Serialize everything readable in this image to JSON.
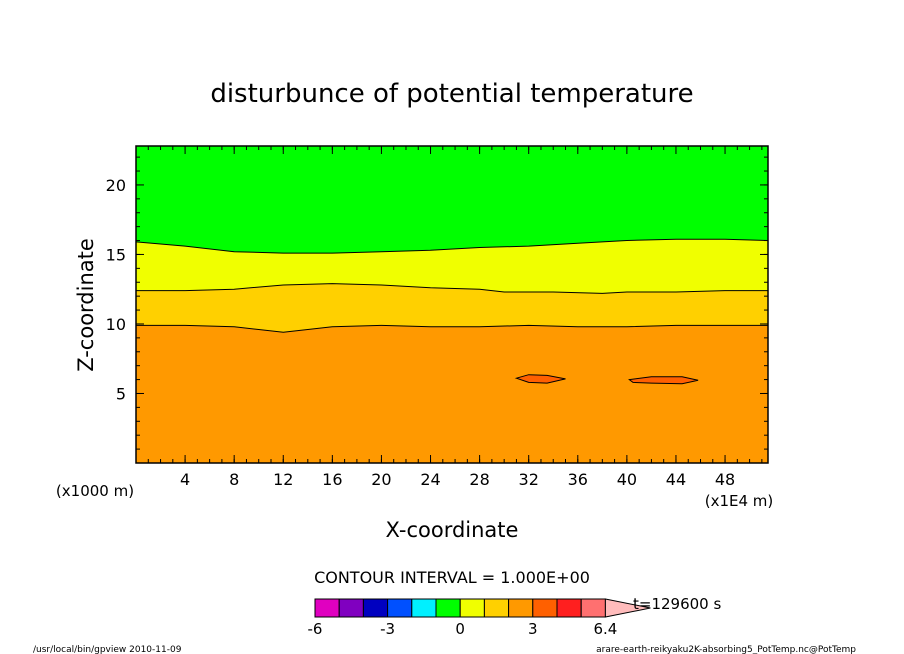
{
  "chart_data": {
    "type": "contour",
    "title": "disturbunce of potential temperature",
    "xlabel": "X-coordinate",
    "ylabel": "Z-coordinate",
    "x_unit_left": "(x1000 m)",
    "x_unit_right": "(x1E4 m)",
    "xlim": [
      0,
      51.5
    ],
    "ylim": [
      0,
      22.8
    ],
    "x_ticks": [
      "4",
      "8",
      "12",
      "16",
      "20",
      "24",
      "28",
      "32",
      "36",
      "40",
      "44",
      "48"
    ],
    "y_ticks": [
      "5",
      "10",
      "15",
      "20"
    ],
    "contour_interval_label": "CONTOUR INTERVAL = 1.000E+00",
    "time_label": "t=129600 s",
    "colorbar": {
      "tick_labels": [
        "-6",
        "-3",
        "0",
        "3",
        "6.4"
      ],
      "colors": [
        "#e000c0",
        "#8000c0",
        "#0000c0",
        "#0050ff",
        "#00f0ff",
        "#00ff00",
        "#f0ff00",
        "#ffd000",
        "#ff9900",
        "#ff6000",
        "#ff1f1f",
        "#ff7070",
        "#ffbcbc"
      ]
    },
    "regions": [
      {
        "level": "0 to 1",
        "color": "#00ff00"
      },
      {
        "level": "1 to 2",
        "color": "#f0ff00"
      },
      {
        "level": "2 to 3",
        "color": "#ffd000"
      },
      {
        "level": "3 to 4",
        "color": "#ff9900"
      },
      {
        "level": "4 to 5",
        "color": "#ff6000"
      }
    ],
    "contours": [
      {
        "value": 1,
        "points": [
          [
            0,
            15.9
          ],
          [
            4,
            15.6
          ],
          [
            8,
            15.2
          ],
          [
            12,
            15.1
          ],
          [
            16,
            15.1
          ],
          [
            20,
            15.2
          ],
          [
            24,
            15.3
          ],
          [
            28,
            15.5
          ],
          [
            32,
            15.6
          ],
          [
            36,
            15.8
          ],
          [
            40,
            16.0
          ],
          [
            44,
            16.1
          ],
          [
            48,
            16.1
          ],
          [
            51.5,
            16.0
          ]
        ]
      },
      {
        "value": 2,
        "points": [
          [
            0,
            12.4
          ],
          [
            4,
            12.4
          ],
          [
            8,
            12.5
          ],
          [
            12,
            12.8
          ],
          [
            16,
            12.9
          ],
          [
            20,
            12.8
          ],
          [
            24,
            12.6
          ],
          [
            28,
            12.5
          ],
          [
            30,
            12.3
          ],
          [
            34,
            12.3
          ],
          [
            38,
            12.2
          ],
          [
            40,
            12.3
          ],
          [
            44,
            12.3
          ],
          [
            48,
            12.4
          ],
          [
            51.5,
            12.4
          ]
        ]
      },
      {
        "value": 3,
        "points": [
          [
            0,
            9.9
          ],
          [
            4,
            9.9
          ],
          [
            8,
            9.8
          ],
          [
            10,
            9.6
          ],
          [
            12,
            9.4
          ],
          [
            14,
            9.6
          ],
          [
            16,
            9.8
          ],
          [
            20,
            9.9
          ],
          [
            24,
            9.8
          ],
          [
            28,
            9.8
          ],
          [
            32,
            9.9
          ],
          [
            36,
            9.8
          ],
          [
            40,
            9.8
          ],
          [
            44,
            9.9
          ],
          [
            48,
            9.9
          ],
          [
            51.5,
            9.9
          ]
        ]
      }
    ],
    "islands": [
      {
        "value": 4,
        "points": [
          [
            31.0,
            6.1
          ],
          [
            32.0,
            6.35
          ],
          [
            33.5,
            6.3
          ],
          [
            35.0,
            6.05
          ],
          [
            33.5,
            5.75
          ],
          [
            32.0,
            5.8
          ]
        ]
      },
      {
        "value": 4,
        "points": [
          [
            40.2,
            6.0
          ],
          [
            42.0,
            6.2
          ],
          [
            44.5,
            6.2
          ],
          [
            45.8,
            5.95
          ],
          [
            44.5,
            5.7
          ],
          [
            42.0,
            5.75
          ],
          [
            40.5,
            5.8
          ]
        ]
      }
    ]
  },
  "footer": {
    "left": "/usr/local/bin/gpview   2010-11-09",
    "right": "arare-earth-reikyaku2K-absorbing5_PotTemp.nc@PotTemp"
  }
}
